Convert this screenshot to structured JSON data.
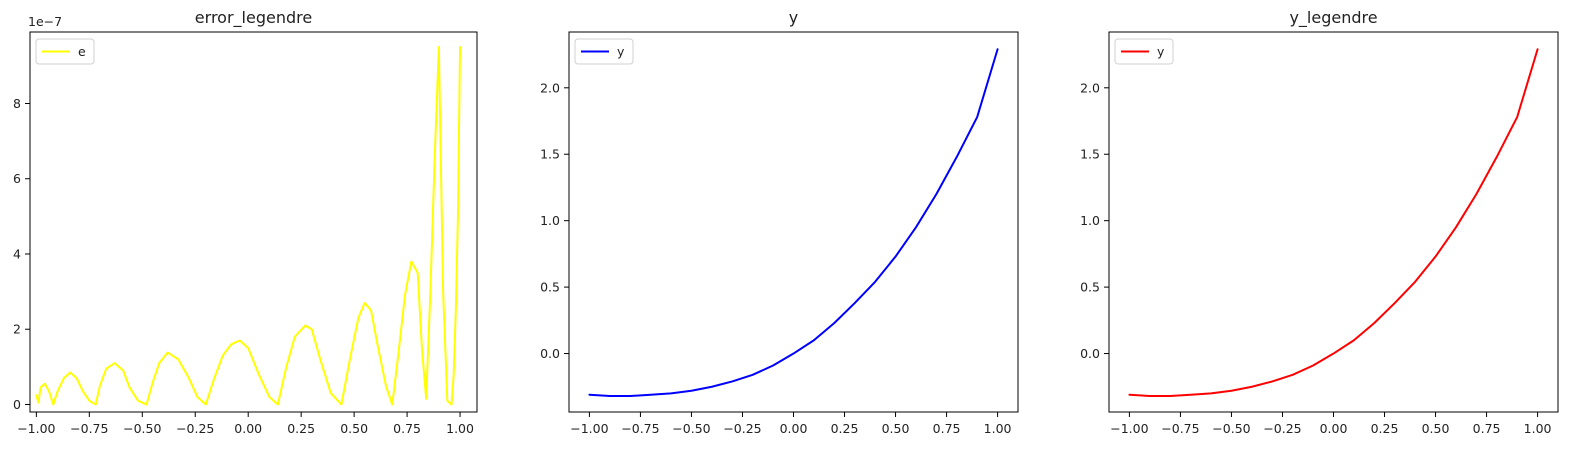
{
  "chart_data": [
    {
      "type": "line",
      "title": "error_legendre",
      "xlabel": "",
      "ylabel": "",
      "y_offset_label": "1e−7",
      "xlim": [
        -1.03,
        1.08
      ],
      "ylim": [
        -0.2,
        9.9
      ],
      "x_ticks": [
        -1.0,
        -0.75,
        -0.5,
        -0.25,
        0.0,
        0.25,
        0.5,
        0.75,
        1.0
      ],
      "x_tick_labels": [
        "−1.00",
        "−0.75",
        "−0.50",
        "−0.25",
        "0.00",
        "0.25",
        "0.50",
        "0.75",
        "1.00"
      ],
      "y_ticks": [
        0,
        2,
        4,
        6,
        8
      ],
      "y_tick_labels": [
        "0",
        "2",
        "4",
        "6",
        "8"
      ],
      "grid": false,
      "legend_position": "top-left",
      "series": [
        {
          "name": "e",
          "color": "#ffff00",
          "x": [
            -1.0,
            -0.99,
            -0.98,
            -0.96,
            -0.94,
            -0.92,
            -0.9,
            -0.87,
            -0.84,
            -0.81,
            -0.78,
            -0.75,
            -0.72,
            -0.7,
            -0.67,
            -0.63,
            -0.59,
            -0.56,
            -0.52,
            -0.48,
            -0.45,
            -0.42,
            -0.38,
            -0.33,
            -0.28,
            -0.24,
            -0.2,
            -0.16,
            -0.12,
            -0.08,
            -0.04,
            0.0,
            0.05,
            0.1,
            0.14,
            0.18,
            0.22,
            0.27,
            0.3,
            0.34,
            0.39,
            0.44,
            0.48,
            0.52,
            0.55,
            0.58,
            0.61,
            0.65,
            0.68,
            0.71,
            0.74,
            0.77,
            0.8,
            0.82,
            0.84,
            0.86,
            0.88,
            0.9,
            0.92,
            0.94,
            0.96,
            0.97,
            0.98,
            0.99,
            1.0
          ],
          "y": [
            0.25,
            0.05,
            0.45,
            0.55,
            0.35,
            0.0,
            0.35,
            0.7,
            0.85,
            0.7,
            0.35,
            0.1,
            0.0,
            0.5,
            0.95,
            1.1,
            0.9,
            0.45,
            0.1,
            0.0,
            0.6,
            1.1,
            1.38,
            1.2,
            0.7,
            0.2,
            0.0,
            0.7,
            1.3,
            1.6,
            1.7,
            1.5,
            0.8,
            0.2,
            0.0,
            1.0,
            1.8,
            2.1,
            2.0,
            1.2,
            0.3,
            0.0,
            1.2,
            2.3,
            2.7,
            2.5,
            1.6,
            0.5,
            0.0,
            1.4,
            2.9,
            3.8,
            3.5,
            1.5,
            0.15,
            3.0,
            6.5,
            9.5,
            3.0,
            0.1,
            0.0,
            0.8,
            2.5,
            5.0,
            9.5
          ]
        }
      ]
    },
    {
      "type": "line",
      "title": "y",
      "xlabel": "",
      "ylabel": "",
      "xlim": [
        -1.1,
        1.1
      ],
      "ylim": [
        -0.44,
        2.42
      ],
      "x_ticks": [
        -1.0,
        -0.75,
        -0.5,
        -0.25,
        0.0,
        0.25,
        0.5,
        0.75,
        1.0
      ],
      "x_tick_labels": [
        "−1.00",
        "−0.75",
        "−0.50",
        "−0.25",
        "0.00",
        "0.25",
        "0.50",
        "0.75",
        "1.00"
      ],
      "y_ticks": [
        0.0,
        0.5,
        1.0,
        1.5,
        2.0
      ],
      "y_tick_labels": [
        "0.0",
        "0.5",
        "1.0",
        "1.5",
        "2.0"
      ],
      "grid": false,
      "legend_position": "top-left",
      "series": [
        {
          "name": "y",
          "color": "#0000ff",
          "x": [
            -1.0,
            -0.9,
            -0.8,
            -0.7,
            -0.6,
            -0.5,
            -0.4,
            -0.3,
            -0.2,
            -0.1,
            0.0,
            0.1,
            0.2,
            0.3,
            0.4,
            0.5,
            0.6,
            0.7,
            0.8,
            0.9,
            1.0
          ],
          "y": [
            -0.31,
            -0.32,
            -0.32,
            -0.31,
            -0.3,
            -0.28,
            -0.25,
            -0.21,
            -0.16,
            -0.09,
            0.0,
            0.1,
            0.23,
            0.38,
            0.54,
            0.73,
            0.95,
            1.2,
            1.48,
            1.78,
            2.29
          ]
        }
      ]
    },
    {
      "type": "line",
      "title": "y_legendre",
      "xlabel": "",
      "ylabel": "",
      "xlim": [
        -1.1,
        1.1
      ],
      "ylim": [
        -0.44,
        2.42
      ],
      "x_ticks": [
        -1.0,
        -0.75,
        -0.5,
        -0.25,
        0.0,
        0.25,
        0.5,
        0.75,
        1.0
      ],
      "x_tick_labels": [
        "−1.00",
        "−0.75",
        "−0.50",
        "−0.25",
        "0.00",
        "0.25",
        "0.50",
        "0.75",
        "1.00"
      ],
      "y_ticks": [
        0.0,
        0.5,
        1.0,
        1.5,
        2.0
      ],
      "y_tick_labels": [
        "0.0",
        "0.5",
        "1.0",
        "1.5",
        "2.0"
      ],
      "grid": false,
      "legend_position": "top-left",
      "series": [
        {
          "name": "y",
          "color": "#ff0000",
          "x": [
            -1.0,
            -0.9,
            -0.8,
            -0.7,
            -0.6,
            -0.5,
            -0.4,
            -0.3,
            -0.2,
            -0.1,
            0.0,
            0.1,
            0.2,
            0.3,
            0.4,
            0.5,
            0.6,
            0.7,
            0.8,
            0.9,
            1.0
          ],
          "y": [
            -0.31,
            -0.32,
            -0.32,
            -0.31,
            -0.3,
            -0.28,
            -0.25,
            -0.21,
            -0.16,
            -0.09,
            0.0,
            0.1,
            0.23,
            0.38,
            0.54,
            0.73,
            0.95,
            1.2,
            1.48,
            1.78,
            2.29
          ]
        }
      ]
    }
  ]
}
